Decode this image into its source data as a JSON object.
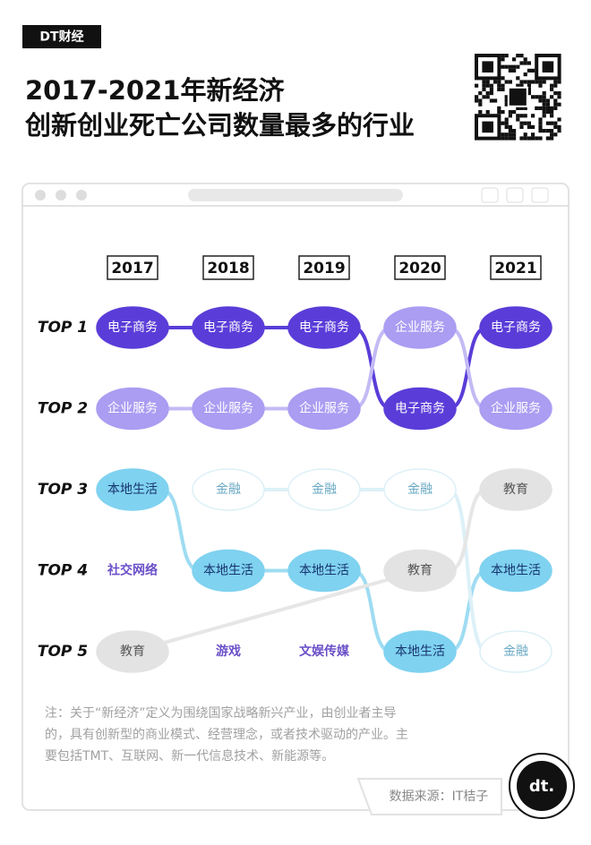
{
  "brand": "DT财经",
  "title": [
    "2017-2021年新经济",
    "创新创业死亡公司数量最多的行业"
  ],
  "years": [
    "2017",
    "2018",
    "2019",
    "2020",
    "2021"
  ],
  "ranks": [
    "TOP 1",
    "TOP 2",
    "TOP 3",
    "TOP 4",
    "TOP 5"
  ],
  "rankings": [
    [
      "电子商务",
      "企业服务",
      "本地生活",
      "社交网络",
      "教育"
    ],
    [
      "电子商务",
      "企业服务",
      "金融",
      "本地生活",
      "游戏"
    ],
    [
      "电子商务",
      "企业服务",
      "金融",
      "本地生活",
      "文娱传媒"
    ],
    [
      "企业服务",
      "电子商务",
      "金融",
      "教育",
      "本地生活"
    ],
    [
      "电子商务",
      "企业服务",
      "教育",
      "本地生活",
      "金融"
    ]
  ],
  "categories": [
    {
      "name": "电子商务",
      "fill": "#5a3dd8",
      "stroke": "#5a3dd8",
      "text_color": "#ffffff",
      "line_color": "#5a3dd8"
    },
    {
      "name": "企业服务",
      "fill": "#aa9df2",
      "stroke": "#aa9df2",
      "text_color": "#ffffff",
      "line_color": "#c3baf5"
    },
    {
      "name": "本地生活",
      "fill": "#7fd2f0",
      "stroke": "#7fd2f0",
      "text_color": "#17346e",
      "line_color": "#9edcf2"
    },
    {
      "name": "金融",
      "fill": "#ffffff",
      "stroke": "#dcf0f7",
      "text_color": "#6aa9c4",
      "line_color": "#dcf0f7"
    },
    {
      "name": "教育",
      "fill": "#e3e3e3",
      "stroke": "#e3e3e3",
      "text_color": "#555555",
      "line_color": "#e6e6e6"
    },
    {
      "name": "社交网络",
      "fill": "none",
      "stroke": "none",
      "text_color": "#6a4fc8",
      "line_color": "none"
    },
    {
      "name": "游戏",
      "fill": "none",
      "stroke": "none",
      "text_color": "#6a4fc8",
      "line_color": "none"
    },
    {
      "name": "文娱传媒",
      "fill": "none",
      "stroke": "none",
      "text_color": "#6a4fc8",
      "line_color": "none"
    }
  ],
  "note": [
    "注：关于“新经济”定义为围绕国家战略新兴产业，由创业者主导",
    "的，具有创新型的商业模式、经营理念，或者技术驱动的产业。主",
    "要包括TMT、互联网、新一代信息技术、新能源等。"
  ],
  "source": "数据来源：IT桔子"
}
